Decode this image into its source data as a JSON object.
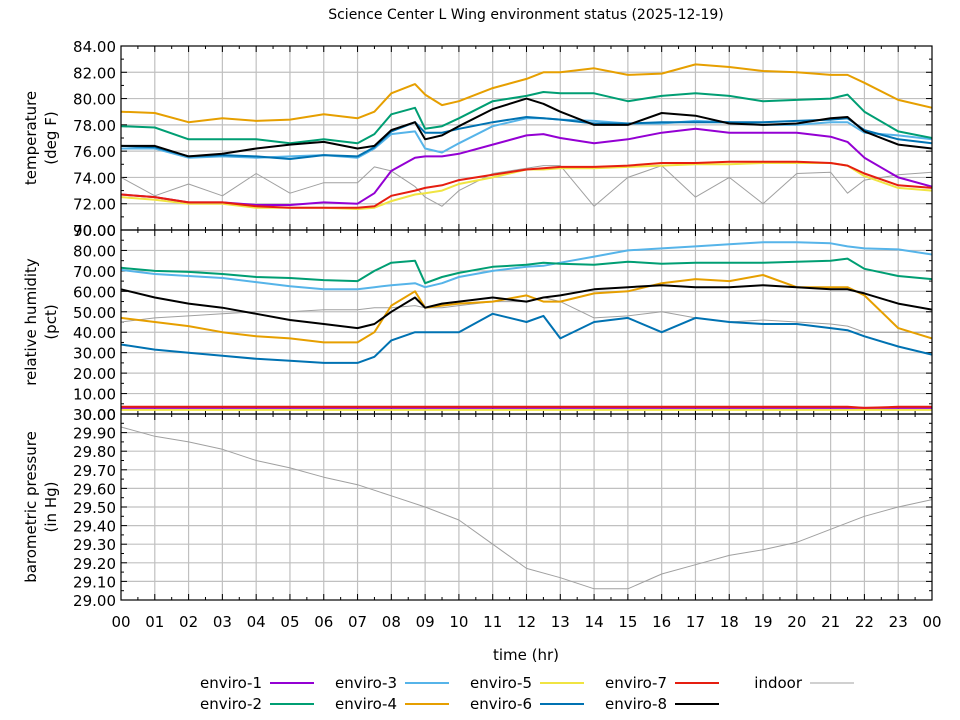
{
  "chart_data": {
    "type": "line",
    "title": "Science Center L Wing environment status (2025-12-19)",
    "xlabel": "time (hr)",
    "x_ticks": [
      "00",
      "01",
      "02",
      "03",
      "04",
      "05",
      "06",
      "07",
      "08",
      "09",
      "10",
      "11",
      "12",
      "13",
      "14",
      "15",
      "16",
      "17",
      "18",
      "19",
      "20",
      "21",
      "22",
      "23",
      "00"
    ],
    "xlim": [
      0,
      24
    ],
    "grid": true,
    "legend_position": "bottom",
    "series_styles": {
      "enviro-1": "#9400d3",
      "enviro-2": "#009e73",
      "enviro-3": "#56b4e9",
      "enviro-4": "#e69f00",
      "enviro-5": "#f0e442",
      "enviro-6": "#0072b2",
      "enviro-7": "#e51e10",
      "enviro-8": "#000000",
      "indoor": "#a0a0a0"
    },
    "legend": [
      {
        "name": "enviro-1",
        "color": "#9400d3"
      },
      {
        "name": "enviro-2",
        "color": "#009e73"
      },
      {
        "name": "enviro-3",
        "color": "#56b4e9"
      },
      {
        "name": "enviro-4",
        "color": "#e69f00"
      },
      {
        "name": "enviro-5",
        "color": "#f0e442"
      },
      {
        "name": "enviro-6",
        "color": "#0072b2"
      },
      {
        "name": "enviro-7",
        "color": "#e51e10"
      },
      {
        "name": "enviro-8",
        "color": "#000000"
      },
      {
        "name": "indoor",
        "color": "#a0a0a0"
      }
    ],
    "panels": [
      {
        "id": "temperature",
        "ylabel": [
          "temperature",
          "(deg F)"
        ],
        "ylim": [
          70,
          84
        ],
        "y_ticks": [
          "84.00",
          "82.00",
          "80.00",
          "78.00",
          "76.00",
          "74.00",
          "72.00",
          "70.00"
        ],
        "x": [
          0,
          1,
          2,
          3,
          4,
          5,
          6,
          7,
          7.5,
          8,
          8.7,
          9,
          9.5,
          10,
          11,
          12,
          12.5,
          13,
          14,
          15,
          16,
          17,
          18,
          19,
          20,
          21,
          21.5,
          22,
          23,
          24
        ],
        "series": [
          {
            "name": "enviro-1",
            "values": [
              72.7,
              72.5,
              72.1,
              72.1,
              71.9,
              71.9,
              72.1,
              72.0,
              72.8,
              74.5,
              75.5,
              75.6,
              75.6,
              75.8,
              76.5,
              77.2,
              77.3,
              77.0,
              76.6,
              76.9,
              77.4,
              77.7,
              77.4,
              77.4,
              77.4,
              77.1,
              76.7,
              75.5,
              74.0,
              73.3
            ]
          },
          {
            "name": "enviro-2",
            "values": [
              77.9,
              77.8,
              76.9,
              76.9,
              76.9,
              76.6,
              76.9,
              76.6,
              77.3,
              78.8,
              79.3,
              77.7,
              77.9,
              78.5,
              79.8,
              80.2,
              80.5,
              80.4,
              80.4,
              79.8,
              80.2,
              80.4,
              80.2,
              79.8,
              79.9,
              80.0,
              80.3,
              79.0,
              77.5,
              77.0
            ]
          },
          {
            "name": "enviro-3",
            "values": [
              76.2,
              76.2,
              75.5,
              75.6,
              75.5,
              75.6,
              75.7,
              75.5,
              76.2,
              77.3,
              77.5,
              76.2,
              75.9,
              76.6,
              77.9,
              78.5,
              78.5,
              78.4,
              78.3,
              78.1,
              78.1,
              78.3,
              78.2,
              78.0,
              78.0,
              78.2,
              78.2,
              77.4,
              77.2,
              76.9
            ]
          },
          {
            "name": "enviro-4",
            "values": [
              79.0,
              78.9,
              78.2,
              78.5,
              78.3,
              78.4,
              78.8,
              78.5,
              79.0,
              80.4,
              81.1,
              80.3,
              79.5,
              79.8,
              80.8,
              81.5,
              82.0,
              82.0,
              82.3,
              81.8,
              81.9,
              82.6,
              82.4,
              82.1,
              82.0,
              81.8,
              81.8,
              81.2,
              79.9,
              79.3
            ]
          },
          {
            "name": "enviro-5",
            "values": [
              72.5,
              72.3,
              72.0,
              72.0,
              71.7,
              71.7,
              71.7,
              71.6,
              71.7,
              72.2,
              72.7,
              72.8,
              73.0,
              73.5,
              74.0,
              74.6,
              74.6,
              74.7,
              74.7,
              74.8,
              74.9,
              75.0,
              75.0,
              75.1,
              75.1,
              75.1,
              74.9,
              74.1,
              73.2,
              73.0
            ]
          },
          {
            "name": "enviro-6",
            "values": [
              76.4,
              76.3,
              75.6,
              75.7,
              75.6,
              75.4,
              75.7,
              75.6,
              76.3,
              77.5,
              78.2,
              77.4,
              77.4,
              77.7,
              78.2,
              78.6,
              78.5,
              78.4,
              78.1,
              78.1,
              78.2,
              78.2,
              78.2,
              78.2,
              78.3,
              78.4,
              78.5,
              77.6,
              76.9,
              76.6
            ]
          },
          {
            "name": "enviro-7",
            "values": [
              72.7,
              72.5,
              72.1,
              72.1,
              71.8,
              71.7,
              71.7,
              71.7,
              71.8,
              72.6,
              73.0,
              73.2,
              73.4,
              73.8,
              74.2,
              74.6,
              74.7,
              74.8,
              74.8,
              74.9,
              75.1,
              75.1,
              75.2,
              75.2,
              75.2,
              75.1,
              74.9,
              74.3,
              73.4,
              73.2
            ]
          },
          {
            "name": "enviro-8",
            "values": [
              76.4,
              76.4,
              75.6,
              75.8,
              76.2,
              76.5,
              76.7,
              76.2,
              76.4,
              77.6,
              78.2,
              76.9,
              77.2,
              77.9,
              79.2,
              80.0,
              79.6,
              79.0,
              78.0,
              78.0,
              78.9,
              78.7,
              78.1,
              78.0,
              78.1,
              78.5,
              78.6,
              77.5,
              76.5,
              76.2
            ]
          },
          {
            "name": "indoor",
            "values": [
              74.0,
              72.6,
              73.5,
              72.6,
              74.3,
              72.8,
              73.6,
              73.6,
              74.8,
              74.5,
              73.3,
              72.5,
              71.8,
              73.0,
              74.3,
              74.7,
              74.9,
              74.9,
              71.8,
              74.0,
              74.9,
              72.5,
              74.0,
              72.0,
              74.3,
              74.4,
              72.8,
              73.8,
              74.2,
              74.4
            ]
          }
        ]
      },
      {
        "id": "humidity",
        "ylabel": [
          "relative humidity",
          "(pct)"
        ],
        "ylim": [
          0,
          90
        ],
        "y_ticks": [
          "90.00",
          "80.00",
          "70.00",
          "60.00",
          "50.00",
          "40.00",
          "30.00",
          "20.00",
          "10.00",
          "0.00"
        ],
        "x": [
          0,
          1,
          2,
          3,
          4,
          5,
          6,
          7,
          7.5,
          8,
          8.7,
          9,
          9.5,
          10,
          11,
          12,
          12.5,
          13,
          14,
          15,
          16,
          17,
          18,
          19,
          20,
          21,
          21.5,
          22,
          23,
          24
        ],
        "series": [
          {
            "name": "enviro-1",
            "values": [
              3,
              3,
              3,
              3,
              3,
              3,
              3,
              3,
              3,
              3,
              3,
              3,
              3,
              3,
              3,
              3,
              3,
              3,
              3,
              3,
              3,
              3,
              3,
              3,
              3,
              3,
              3,
              3,
              3,
              3
            ]
          },
          {
            "name": "enviro-2",
            "values": [
              71.5,
              70,
              69.5,
              68.5,
              67,
              66.5,
              65.5,
              65,
              70,
              74,
              75,
              64,
              67,
              69,
              72,
              73,
              74,
              73.5,
              73,
              74.5,
              73.5,
              74,
              74,
              74,
              74.5,
              75,
              76,
              71,
              67.5,
              66
            ]
          },
          {
            "name": "enviro-3",
            "values": [
              70.5,
              68.5,
              67.5,
              66.5,
              64.5,
              62.5,
              61,
              61,
              62,
              63,
              64,
              62,
              64,
              67,
              70,
              72,
              72.5,
              74,
              77,
              80,
              81,
              82,
              83,
              84,
              84,
              83.5,
              82,
              81,
              80.5,
              78
            ]
          },
          {
            "name": "enviro-4",
            "values": [
              47,
              45,
              43,
              40,
              38,
              37,
              35,
              35,
              40,
              53,
              60,
              52,
              53,
              54,
              55,
              58,
              55,
              55,
              59,
              60,
              64,
              66,
              65,
              68,
              62,
              62,
              62,
              58,
              42,
              37
            ]
          },
          {
            "name": "enviro-5",
            "values": [
              2,
              2,
              2,
              2,
              2,
              2,
              2,
              2,
              2,
              2,
              2,
              2,
              2,
              2,
              2,
              2,
              2,
              2,
              2,
              2,
              2,
              2,
              2,
              2,
              2,
              2,
              2,
              2,
              2,
              2
            ]
          },
          {
            "name": "enviro-6",
            "values": [
              34,
              31.5,
              30,
              28.5,
              27,
              26,
              25,
              25,
              28,
              36,
              40,
              40,
              40,
              40,
              49,
              45,
              48,
              37,
              45,
              47,
              40,
              47,
              45,
              44,
              44,
              42,
              41,
              38,
              33,
              29
            ]
          },
          {
            "name": "enviro-7",
            "values": [
              3.5,
              3.5,
              3.5,
              3.5,
              3.5,
              3.5,
              3.5,
              3.5,
              3.5,
              3.5,
              3.5,
              3.5,
              3.5,
              3.5,
              3.5,
              3.5,
              3.5,
              3.5,
              3.5,
              3.5,
              3.5,
              3.5,
              3.5,
              3.5,
              3.5,
              3.5,
              3.5,
              3,
              3.5,
              3.5
            ]
          },
          {
            "name": "enviro-8",
            "values": [
              61,
              57,
              54,
              52,
              49,
              46,
              44,
              42,
              44,
              50,
              57,
              52,
              54,
              55,
              57,
              55,
              57,
              58,
              61,
              62,
              63,
              62,
              62,
              63,
              62,
              61,
              61,
              59,
              54,
              51
            ]
          },
          {
            "name": "indoor",
            "values": [
              45,
              47,
              48,
              49,
              50,
              50,
              51,
              51,
              52,
              52,
              53,
              52,
              52,
              53,
              55,
              55,
              57,
              55,
              47,
              48,
              50,
              47,
              45,
              46,
              45,
              44,
              43,
              40,
              40,
              40
            ]
          }
        ]
      },
      {
        "id": "pressure",
        "ylabel": [
          "barometric pressure",
          "(in Hg)"
        ],
        "ylim": [
          29.0,
          30.0
        ],
        "y_ticks": [
          "30.00",
          "29.90",
          "29.80",
          "29.70",
          "29.60",
          "29.50",
          "29.40",
          "29.30",
          "29.20",
          "29.10",
          "29.00"
        ],
        "x": [
          0,
          1,
          2,
          3,
          4,
          5,
          6,
          7,
          8,
          9,
          10,
          11,
          12,
          13,
          14,
          15,
          16,
          17,
          18,
          19,
          20,
          21,
          22,
          23,
          24
        ],
        "series": [
          {
            "name": "indoor",
            "values": [
              29.93,
              29.88,
              29.85,
              29.81,
              29.75,
              29.71,
              29.66,
              29.62,
              29.56,
              29.5,
              29.43,
              29.3,
              29.17,
              29.12,
              29.06,
              29.06,
              29.14,
              29.19,
              29.24,
              29.27,
              29.31,
              29.38,
              29.45,
              29.5,
              29.54
            ]
          }
        ]
      }
    ]
  }
}
